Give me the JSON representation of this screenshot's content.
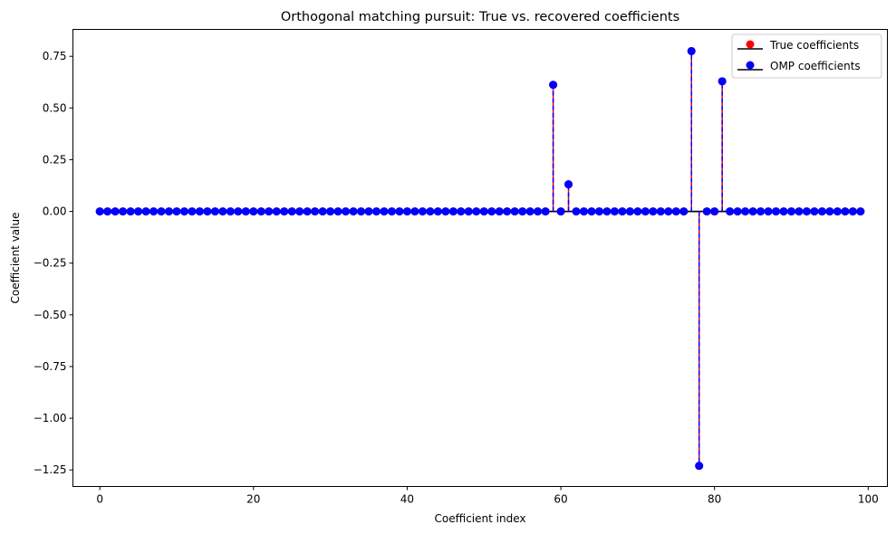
{
  "chart_data": {
    "type": "stem",
    "title": "Orthogonal matching pursuit: True vs. recovered coefficients",
    "xlabel": "Coefficient index",
    "ylabel": "Coefficient value",
    "xlim": [
      -3.5,
      102.5
    ],
    "ylim": [
      -1.33,
      0.88
    ],
    "xticks": [
      0,
      20,
      40,
      60,
      80,
      100
    ],
    "xtick_labels": [
      "0",
      "20",
      "40",
      "60",
      "80",
      "100"
    ],
    "yticks": [
      0.75,
      0.5,
      0.25,
      0.0,
      -0.25,
      -0.5,
      -0.75,
      -1.0,
      -1.25
    ],
    "ytick_labels": [
      "0.75",
      "0.50",
      "0.25",
      "0.00",
      "−0.25",
      "−0.50",
      "−0.75",
      "−1.00",
      "−1.25"
    ],
    "n": 100,
    "baseline": 0,
    "legend_position": "upper right",
    "series": [
      {
        "name": "True coefficients",
        "marker_color": "#ff0000",
        "stem_color": "#ff0000",
        "baseline_color": "#000000",
        "nonzero": [
          {
            "index": 59,
            "value": 0.612
          },
          {
            "index": 61,
            "value": 0.131
          },
          {
            "index": 77,
            "value": 0.775
          },
          {
            "index": 78,
            "value": -1.23
          },
          {
            "index": 81,
            "value": 0.629
          }
        ]
      },
      {
        "name": "OMP coefficients",
        "marker_color": "#0000ff",
        "stem_color": "#0000ff",
        "stem_style": "dashed",
        "baseline_color": "#000000",
        "nonzero": [
          {
            "index": 59,
            "value": 0.612
          },
          {
            "index": 61,
            "value": 0.131
          },
          {
            "index": 77,
            "value": 0.775
          },
          {
            "index": 78,
            "value": -1.23
          },
          {
            "index": 81,
            "value": 0.629
          }
        ]
      }
    ]
  }
}
